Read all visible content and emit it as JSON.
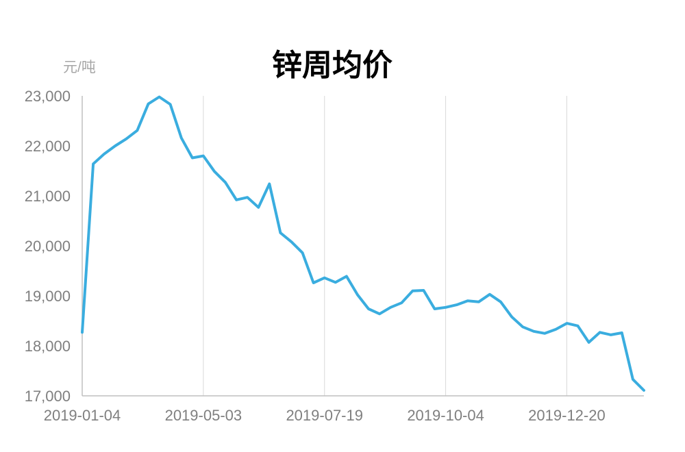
{
  "chart_data": {
    "type": "line",
    "title": "锌周均价",
    "ylabel": "元/吨",
    "xlabel": "",
    "ylim": [
      17000,
      23000
    ],
    "y_ticks": [
      17000,
      18000,
      19000,
      20000,
      21000,
      22000,
      23000
    ],
    "y_tick_labels": [
      "17,000",
      "18,000",
      "19,000",
      "20,000",
      "21,000",
      "22,000",
      "23,000"
    ],
    "x_tick_labels": [
      "2019-01-04",
      "2019-05-03",
      "2019-07-19",
      "2019-10-04",
      "2019-12-20"
    ],
    "x_tick_indices": [
      0,
      11,
      22,
      33,
      44
    ],
    "grid": {
      "vertical": true,
      "horizontal": false
    },
    "legend": "none",
    "colors": {
      "series": "#3aaddf"
    },
    "series": [
      {
        "name": "",
        "values": [
          18270,
          21640,
          21840,
          22000,
          22140,
          22310,
          22840,
          22980,
          22830,
          22160,
          21760,
          21800,
          21490,
          21270,
          20920,
          20970,
          20770,
          21240,
          20260,
          20080,
          19860,
          19260,
          19360,
          19270,
          19390,
          19020,
          18740,
          18640,
          18770,
          18860,
          19100,
          19110,
          18740,
          18770,
          18820,
          18900,
          18880,
          19030,
          18880,
          18580,
          18380,
          18290,
          18250,
          18330,
          18450,
          18400,
          18070,
          18270,
          18220,
          18260,
          17330,
          17110
        ]
      }
    ]
  }
}
